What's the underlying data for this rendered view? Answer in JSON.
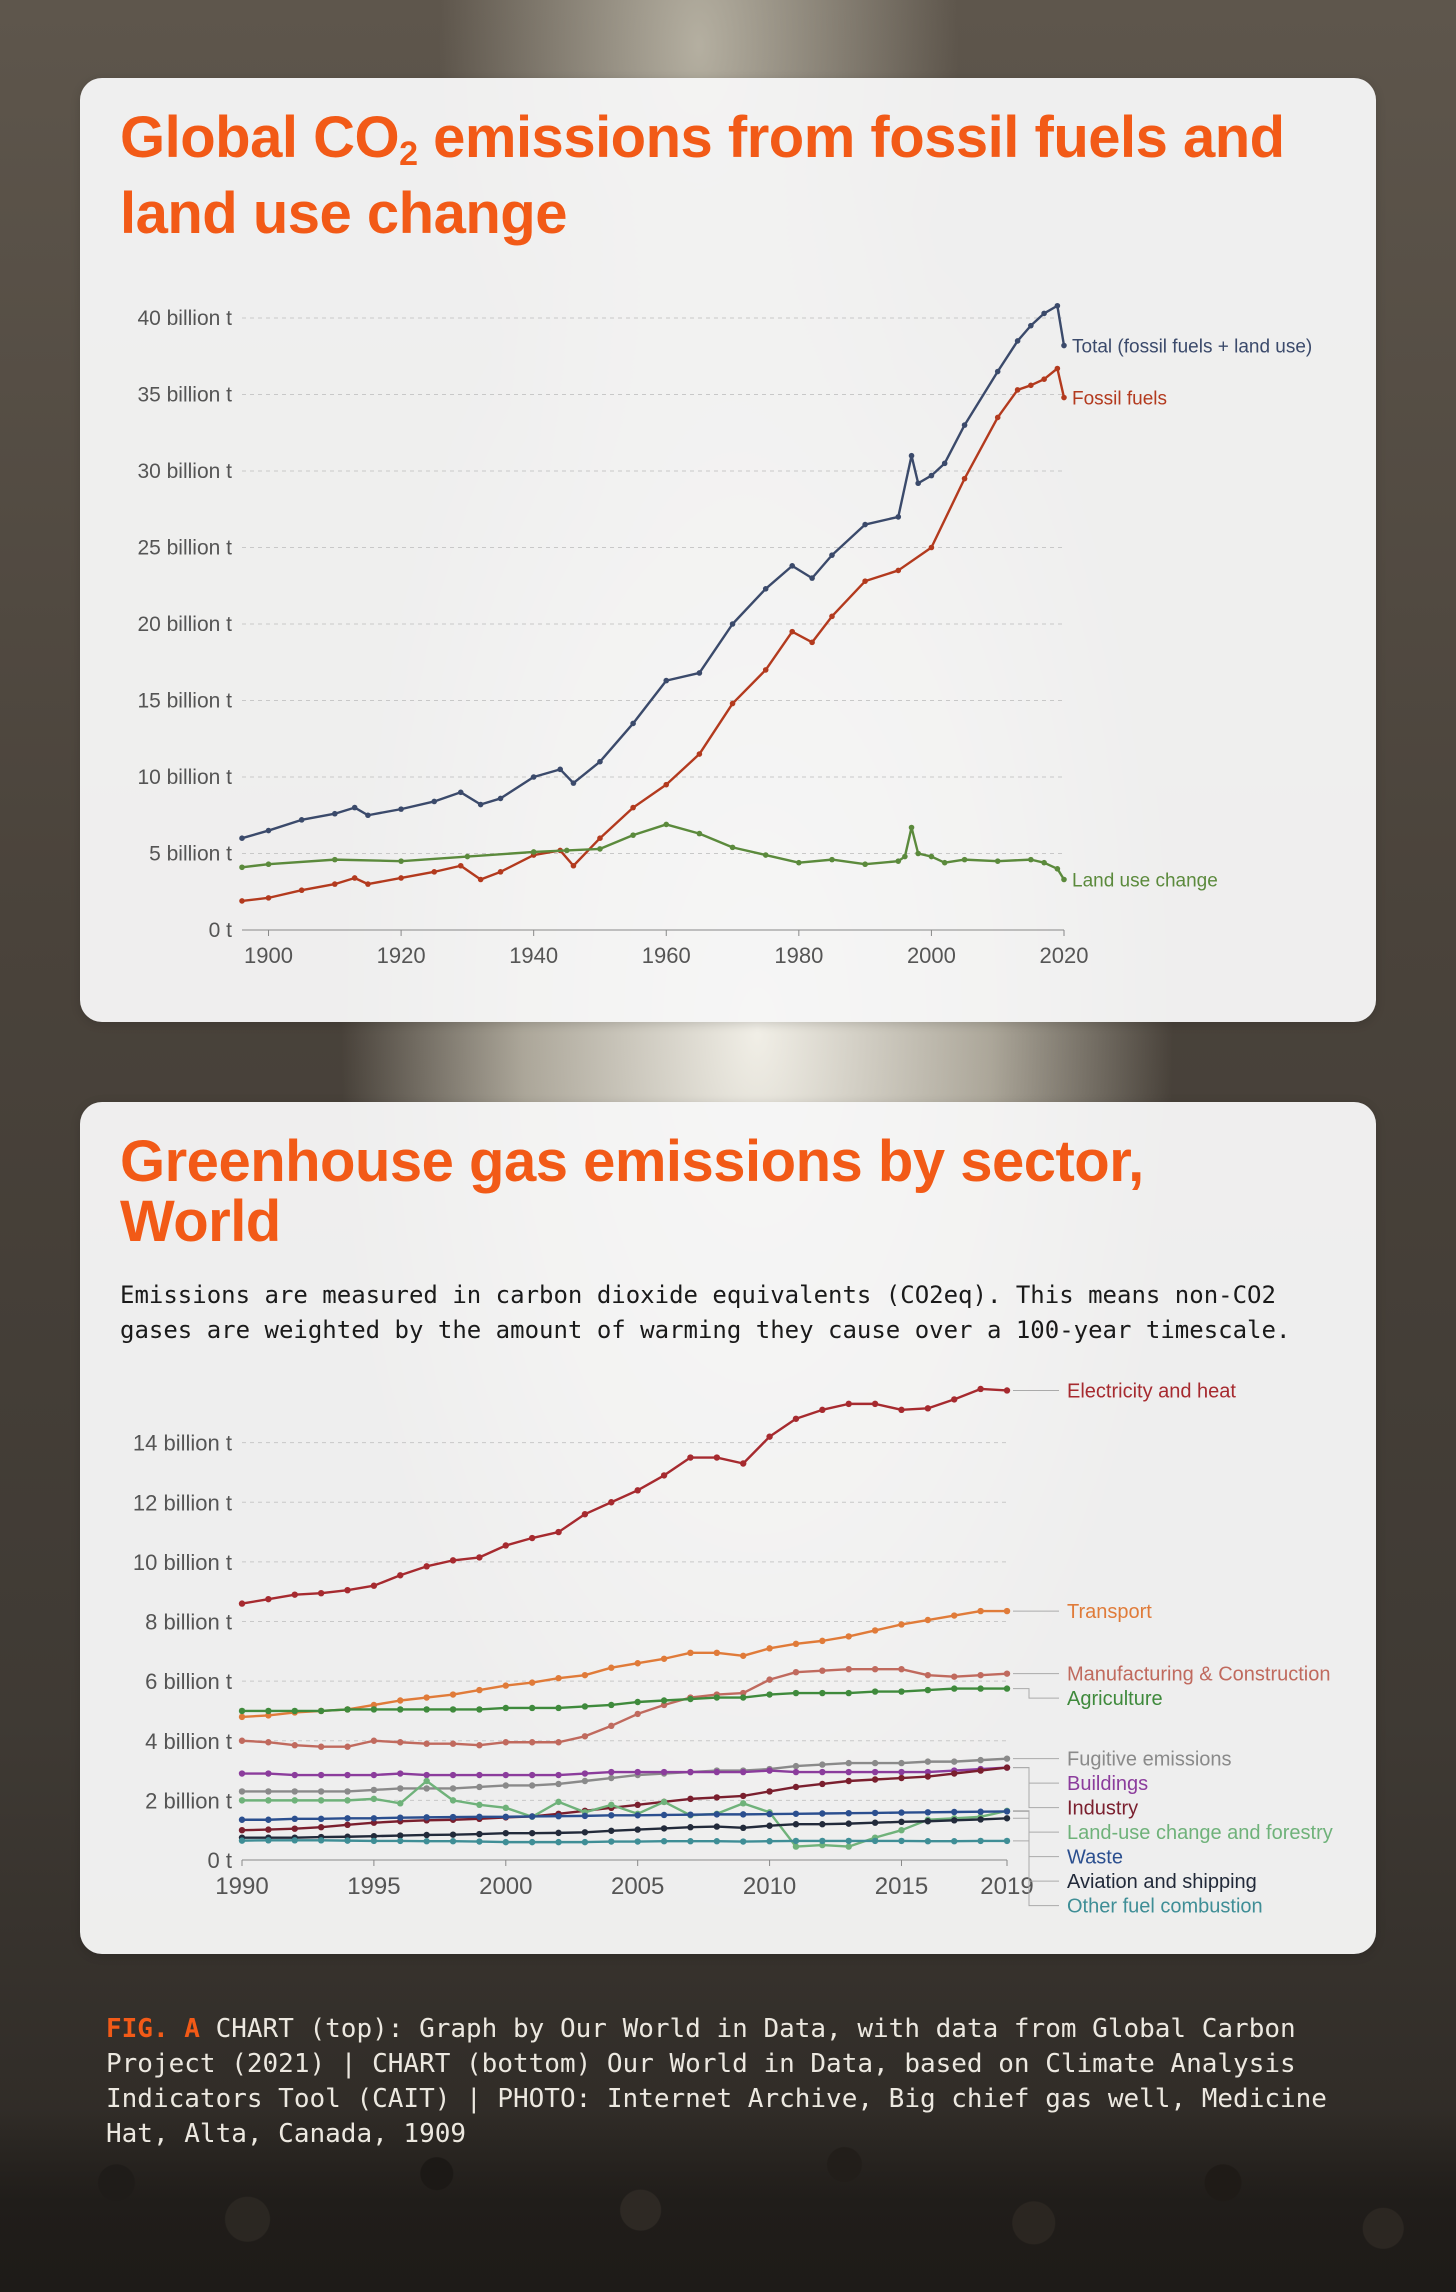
{
  "top_card": {
    "title_part1": "Global CO",
    "title_sub": "2",
    "title_part2": " emissions from fossil fuels and land use change"
  },
  "bottom_card": {
    "title": "Greenhouse gas emissions by sector, World",
    "subtitle": "Emissions are measured in carbon dioxide equivalents (CO2eq). This means non-CO2 gases are weighted by the amount of warming they cause over a 100-year timescale."
  },
  "caption": {
    "fig_label": "FIG. A",
    "text": "CHART (top): Graph by Our World in Data, with data from Global Carbon Project (2021) | CHART (bottom) Our World in Data, based on Climate Analysis Indicators Tool (CAIT) | PHOTO: Internet Archive, Big chief gas well, Medicine Hat, Alta, Canada, 1909"
  },
  "chart_data": [
    {
      "type": "line",
      "title": "Global CO2 emissions from fossil fuels and land use change",
      "ylim": [
        0,
        40
      ],
      "y_ticks": [
        0,
        5,
        10,
        15,
        20,
        25,
        30,
        35,
        40
      ],
      "y_tick_labels": [
        "0 t",
        "5 billion t",
        "10 billion t",
        "15 billion t",
        "20 billion t",
        "25 billion t",
        "30 billion t",
        "35 billion t",
        "40 billion t"
      ],
      "xlim": [
        1896,
        2020
      ],
      "x_ticks": [
        1900,
        1920,
        1940,
        1960,
        1980,
        2000,
        2020
      ],
      "x_tick_labels": [
        "1900",
        "1920",
        "1940",
        "1960",
        "1980",
        "2000",
        "2020"
      ],
      "grid": "horizontal dashed",
      "series": [
        {
          "name": "Total (fossil fuels + land use)",
          "color": "#3b4a6b",
          "x": [
            1896,
            1900,
            1905,
            1910,
            1913,
            1915,
            1920,
            1925,
            1929,
            1932,
            1935,
            1940,
            1944,
            1946,
            1950,
            1955,
            1960,
            1965,
            1970,
            1975,
            1979,
            1982,
            1985,
            1990,
            1995,
            1997,
            1998,
            2000,
            2002,
            2005,
            2010,
            2013,
            2015,
            2017,
            2019,
            2020
          ],
          "y": [
            6.0,
            6.5,
            7.2,
            7.6,
            8.0,
            7.5,
            7.9,
            8.4,
            9.0,
            8.2,
            8.6,
            10.0,
            10.5,
            9.6,
            11.0,
            13.5,
            16.3,
            16.8,
            20.0,
            22.3,
            23.8,
            23.0,
            24.5,
            26.5,
            27.0,
            31.0,
            29.2,
            29.7,
            30.5,
            33.0,
            36.5,
            38.5,
            39.5,
            40.3,
            40.8,
            38.2
          ]
        },
        {
          "name": "Fossil fuels",
          "color": "#b33a1e",
          "x": [
            1896,
            1900,
            1905,
            1910,
            1913,
            1915,
            1920,
            1925,
            1929,
            1932,
            1935,
            1940,
            1944,
            1946,
            1950,
            1955,
            1960,
            1965,
            1970,
            1975,
            1979,
            1982,
            1985,
            1990,
            1995,
            2000,
            2005,
            2010,
            2013,
            2015,
            2017,
            2019,
            2020
          ],
          "y": [
            1.9,
            2.1,
            2.6,
            3.0,
            3.4,
            3.0,
            3.4,
            3.8,
            4.2,
            3.3,
            3.8,
            4.9,
            5.2,
            4.2,
            6.0,
            8.0,
            9.5,
            11.5,
            14.8,
            17.0,
            19.5,
            18.8,
            20.5,
            22.8,
            23.5,
            25.0,
            29.5,
            33.5,
            35.3,
            35.6,
            36.0,
            36.7,
            34.8
          ]
        },
        {
          "name": "Land use change",
          "color": "#5b8a3c",
          "x": [
            1896,
            1900,
            1910,
            1920,
            1930,
            1940,
            1945,
            1950,
            1955,
            1960,
            1965,
            1970,
            1975,
            1980,
            1985,
            1990,
            1995,
            1996,
            1997,
            1998,
            2000,
            2002,
            2005,
            2010,
            2015,
            2017,
            2019,
            2020
          ],
          "y": [
            4.1,
            4.3,
            4.6,
            4.5,
            4.8,
            5.1,
            5.2,
            5.3,
            6.2,
            6.9,
            6.3,
            5.4,
            4.9,
            4.4,
            4.6,
            4.3,
            4.5,
            4.8,
            6.7,
            5.0,
            4.8,
            4.4,
            4.6,
            4.5,
            4.6,
            4.4,
            4.0,
            3.3
          ]
        }
      ]
    },
    {
      "type": "line",
      "title": "Greenhouse gas emissions by sector, World",
      "subtitle": "Emissions are measured in carbon dioxide equivalents (CO2eq). This means non-CO2 gases are weighted by the amount of warming they cause over a 100-year timescale.",
      "ylim": [
        0,
        16
      ],
      "y_ticks": [
        0,
        2,
        4,
        6,
        8,
        10,
        12,
        14
      ],
      "y_tick_labels": [
        "0 t",
        "2 billion t",
        "4 billion t",
        "6 billion t",
        "8 billion t",
        "10 billion t",
        "12 billion t",
        "14 billion t"
      ],
      "xlim": [
        1990,
        2019
      ],
      "x_ticks": [
        1990,
        1995,
        2000,
        2005,
        2010,
        2015,
        2019
      ],
      "x_tick_labels": [
        "1990",
        "1995",
        "2000",
        "2005",
        "2010",
        "2015",
        "2019"
      ],
      "grid": "horizontal dashed",
      "years": [
        1990,
        1991,
        1992,
        1993,
        1994,
        1995,
        1996,
        1997,
        1998,
        1999,
        2000,
        2001,
        2002,
        2003,
        2004,
        2005,
        2006,
        2007,
        2008,
        2009,
        2010,
        2011,
        2012,
        2013,
        2014,
        2015,
        2016,
        2017,
        2018,
        2019
      ],
      "series": [
        {
          "name": "Electricity and heat",
          "color": "#a62a2f",
          "values": [
            8.6,
            8.75,
            8.9,
            8.95,
            9.05,
            9.2,
            9.55,
            9.85,
            10.05,
            10.15,
            10.55,
            10.8,
            11.0,
            11.6,
            12.0,
            12.4,
            12.9,
            13.5,
            13.5,
            13.3,
            14.2,
            14.8,
            15.1,
            15.3,
            15.3,
            15.1,
            15.15,
            15.45,
            15.8,
            15.75
          ]
        },
        {
          "name": "Transport",
          "color": "#e07b39",
          "values": [
            4.8,
            4.85,
            4.95,
            5.0,
            5.05,
            5.2,
            5.35,
            5.45,
            5.55,
            5.7,
            5.85,
            5.95,
            6.1,
            6.2,
            6.45,
            6.6,
            6.75,
            6.95,
            6.95,
            6.85,
            7.1,
            7.25,
            7.35,
            7.5,
            7.7,
            7.9,
            8.05,
            8.2,
            8.35,
            8.35
          ]
        },
        {
          "name": "Manufacturing & Construction",
          "color": "#c06a5e",
          "values": [
            4.0,
            3.95,
            3.85,
            3.8,
            3.8,
            4.0,
            3.95,
            3.9,
            3.9,
            3.85,
            3.95,
            3.95,
            3.95,
            4.15,
            4.5,
            4.9,
            5.2,
            5.45,
            5.55,
            5.6,
            6.05,
            6.3,
            6.35,
            6.4,
            6.4,
            6.4,
            6.2,
            6.15,
            6.2,
            6.25
          ]
        },
        {
          "name": "Agriculture",
          "color": "#3f8a3c",
          "values": [
            5.0,
            5.0,
            5.0,
            5.0,
            5.05,
            5.05,
            5.05,
            5.05,
            5.05,
            5.05,
            5.1,
            5.1,
            5.1,
            5.15,
            5.2,
            5.3,
            5.35,
            5.4,
            5.45,
            5.45,
            5.55,
            5.6,
            5.6,
            5.6,
            5.65,
            5.65,
            5.7,
            5.75,
            5.75,
            5.75
          ]
        },
        {
          "name": "Fugitive emissions",
          "color": "#8a8a8a",
          "values": [
            2.3,
            2.3,
            2.3,
            2.3,
            2.3,
            2.35,
            2.4,
            2.4,
            2.4,
            2.45,
            2.5,
            2.5,
            2.55,
            2.65,
            2.75,
            2.85,
            2.9,
            2.95,
            3.0,
            3.0,
            3.05,
            3.15,
            3.2,
            3.25,
            3.25,
            3.25,
            3.3,
            3.3,
            3.35,
            3.4
          ]
        },
        {
          "name": "Buildings",
          "color": "#8b3c9c",
          "values": [
            2.9,
            2.9,
            2.85,
            2.85,
            2.85,
            2.85,
            2.9,
            2.85,
            2.85,
            2.85,
            2.85,
            2.85,
            2.85,
            2.9,
            2.95,
            2.95,
            2.95,
            2.95,
            2.95,
            2.95,
            3.0,
            2.95,
            2.95,
            2.95,
            2.95,
            2.95,
            2.95,
            3.0,
            3.05,
            3.1
          ]
        },
        {
          "name": "Industry",
          "color": "#7a1f2e",
          "values": [
            1.0,
            1.02,
            1.05,
            1.1,
            1.18,
            1.25,
            1.3,
            1.33,
            1.35,
            1.38,
            1.43,
            1.46,
            1.55,
            1.65,
            1.75,
            1.85,
            1.95,
            2.05,
            2.1,
            2.15,
            2.3,
            2.45,
            2.55,
            2.65,
            2.7,
            2.75,
            2.8,
            2.9,
            3.0,
            3.1
          ]
        },
        {
          "name": "Land-use change and forestry",
          "color": "#6fb27a",
          "values": [
            2.0,
            2.0,
            2.0,
            2.0,
            2.0,
            2.05,
            1.9,
            2.65,
            2.0,
            1.85,
            1.75,
            1.45,
            1.95,
            1.6,
            1.85,
            1.55,
            1.95,
            1.5,
            1.55,
            1.9,
            1.6,
            0.45,
            0.5,
            0.45,
            0.75,
            1.0,
            1.35,
            1.4,
            1.45,
            1.65
          ]
        },
        {
          "name": "Waste",
          "color": "#2b4f8f",
          "values": [
            1.35,
            1.35,
            1.38,
            1.38,
            1.4,
            1.4,
            1.42,
            1.43,
            1.44,
            1.45,
            1.45,
            1.46,
            1.47,
            1.48,
            1.5,
            1.5,
            1.51,
            1.52,
            1.53,
            1.53,
            1.54,
            1.55,
            1.56,
            1.57,
            1.58,
            1.59,
            1.6,
            1.61,
            1.62,
            1.63
          ]
        },
        {
          "name": "Aviation and shipping",
          "color": "#222a3a",
          "values": [
            0.75,
            0.75,
            0.75,
            0.77,
            0.78,
            0.8,
            0.82,
            0.84,
            0.85,
            0.87,
            0.9,
            0.9,
            0.91,
            0.93,
            0.98,
            1.02,
            1.06,
            1.1,
            1.12,
            1.08,
            1.15,
            1.2,
            1.2,
            1.22,
            1.25,
            1.28,
            1.3,
            1.33,
            1.36,
            1.4
          ]
        },
        {
          "name": "Other fuel combustion",
          "color": "#3f8e96",
          "values": [
            0.65,
            0.66,
            0.66,
            0.66,
            0.65,
            0.64,
            0.64,
            0.63,
            0.63,
            0.62,
            0.6,
            0.6,
            0.6,
            0.6,
            0.62,
            0.62,
            0.63,
            0.63,
            0.63,
            0.62,
            0.63,
            0.64,
            0.64,
            0.64,
            0.64,
            0.64,
            0.63,
            0.63,
            0.64,
            0.64
          ]
        }
      ]
    }
  ]
}
